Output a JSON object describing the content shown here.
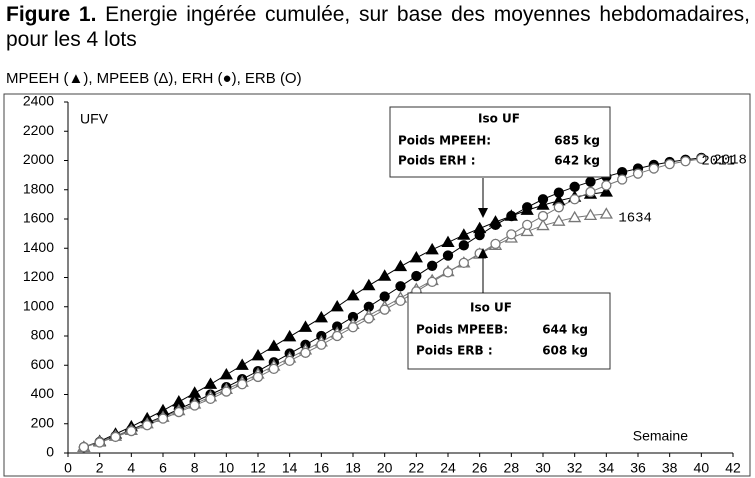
{
  "chart_data": {
    "type": "line",
    "title_label": "Figure 1.",
    "title": "Energie ingérée cumulée, sur base des moyennes hebdomadaires, pour les 4 lots",
    "subtitle": "MPEEH (▲), MPEEB (Δ), ERH (●), ERB (O)",
    "ylabel": "UFV",
    "xlabel": "Semaine",
    "x": [
      1,
      2,
      3,
      4,
      5,
      6,
      7,
      8,
      9,
      10,
      11,
      12,
      13,
      14,
      15,
      16,
      17,
      18,
      19,
      20,
      21,
      22,
      23,
      24,
      25,
      26,
      27,
      28,
      29,
      30,
      31,
      32,
      33,
      34,
      35,
      36,
      37,
      38,
      39,
      40
    ],
    "series": [
      {
        "marker": "triangle",
        "filled": true,
        "color": "#000000",
        "values": [
          40,
          80,
          130,
          180,
          235,
          290,
          350,
          410,
          470,
          535,
          600,
          665,
          730,
          795,
          860,
          925,
          1000,
          1075,
          1145,
          1210,
          1275,
          1335,
          1390,
          1440,
          1490,
          1535,
          1580,
          1620,
          1660,
          1695,
          1725,
          1750,
          1770,
          1785,
          null,
          null,
          null,
          null,
          null,
          null
        ]
      },
      {
        "marker": "circle",
        "filled": true,
        "color": "#000000",
        "values": [
          40,
          75,
          115,
          160,
          205,
          250,
          300,
          350,
          400,
          450,
          505,
          560,
          620,
          680,
          740,
          800,
          865,
          930,
          1000,
          1070,
          1140,
          1210,
          1280,
          1350,
          1420,
          1490,
          1560,
          1620,
          1680,
          1735,
          1780,
          1820,
          1855,
          1890,
          1920,
          1945,
          1970,
          1990,
          2005,
          2018
        ]
      },
      {
        "marker": "triangle",
        "filled": false,
        "color": "#777777",
        "values": [
          40,
          75,
          115,
          155,
          200,
          245,
          290,
          335,
          385,
          435,
          485,
          540,
          595,
          650,
          705,
          760,
          820,
          880,
          940,
          1000,
          1060,
          1120,
          1180,
          1240,
          1300,
          1360,
          1420,
          1470,
          1515,
          1555,
          1585,
          1610,
          1625,
          1634,
          null,
          null,
          null,
          null,
          null,
          null
        ]
      },
      {
        "marker": "circle",
        "filled": false,
        "color": "#777777",
        "values": [
          40,
          72,
          110,
          150,
          190,
          235,
          280,
          325,
          370,
          420,
          470,
          520,
          575,
          630,
          685,
          740,
          800,
          860,
          920,
          980,
          1040,
          1105,
          1170,
          1235,
          1300,
          1365,
          1430,
          1495,
          1560,
          1620,
          1680,
          1735,
          1785,
          1830,
          1870,
          1910,
          1945,
          1975,
          1995,
          2011
        ]
      }
    ],
    "xlim": [
      0,
      42
    ],
    "xticks": [
      0,
      2,
      4,
      6,
      8,
      10,
      12,
      14,
      16,
      18,
      20,
      22,
      24,
      26,
      28,
      30,
      32,
      34,
      36,
      38,
      40,
      42
    ],
    "ylim": [
      0,
      2400
    ],
    "yticks": [
      0,
      200,
      400,
      600,
      800,
      1000,
      1200,
      1400,
      1600,
      1800,
      2000,
      2200,
      2400
    ],
    "annotations": [
      {
        "title": "Iso UF",
        "lines": [
          [
            "Poids MPEEH:",
            "685 kg"
          ],
          [
            "Poids ERH :",
            "642 kg"
          ]
        ]
      },
      {
        "title": "Iso UF",
        "lines": [
          [
            "Poids MPEEB:",
            "644 kg"
          ],
          [
            "Poids ERB :",
            "608 kg"
          ]
        ]
      }
    ]
  }
}
